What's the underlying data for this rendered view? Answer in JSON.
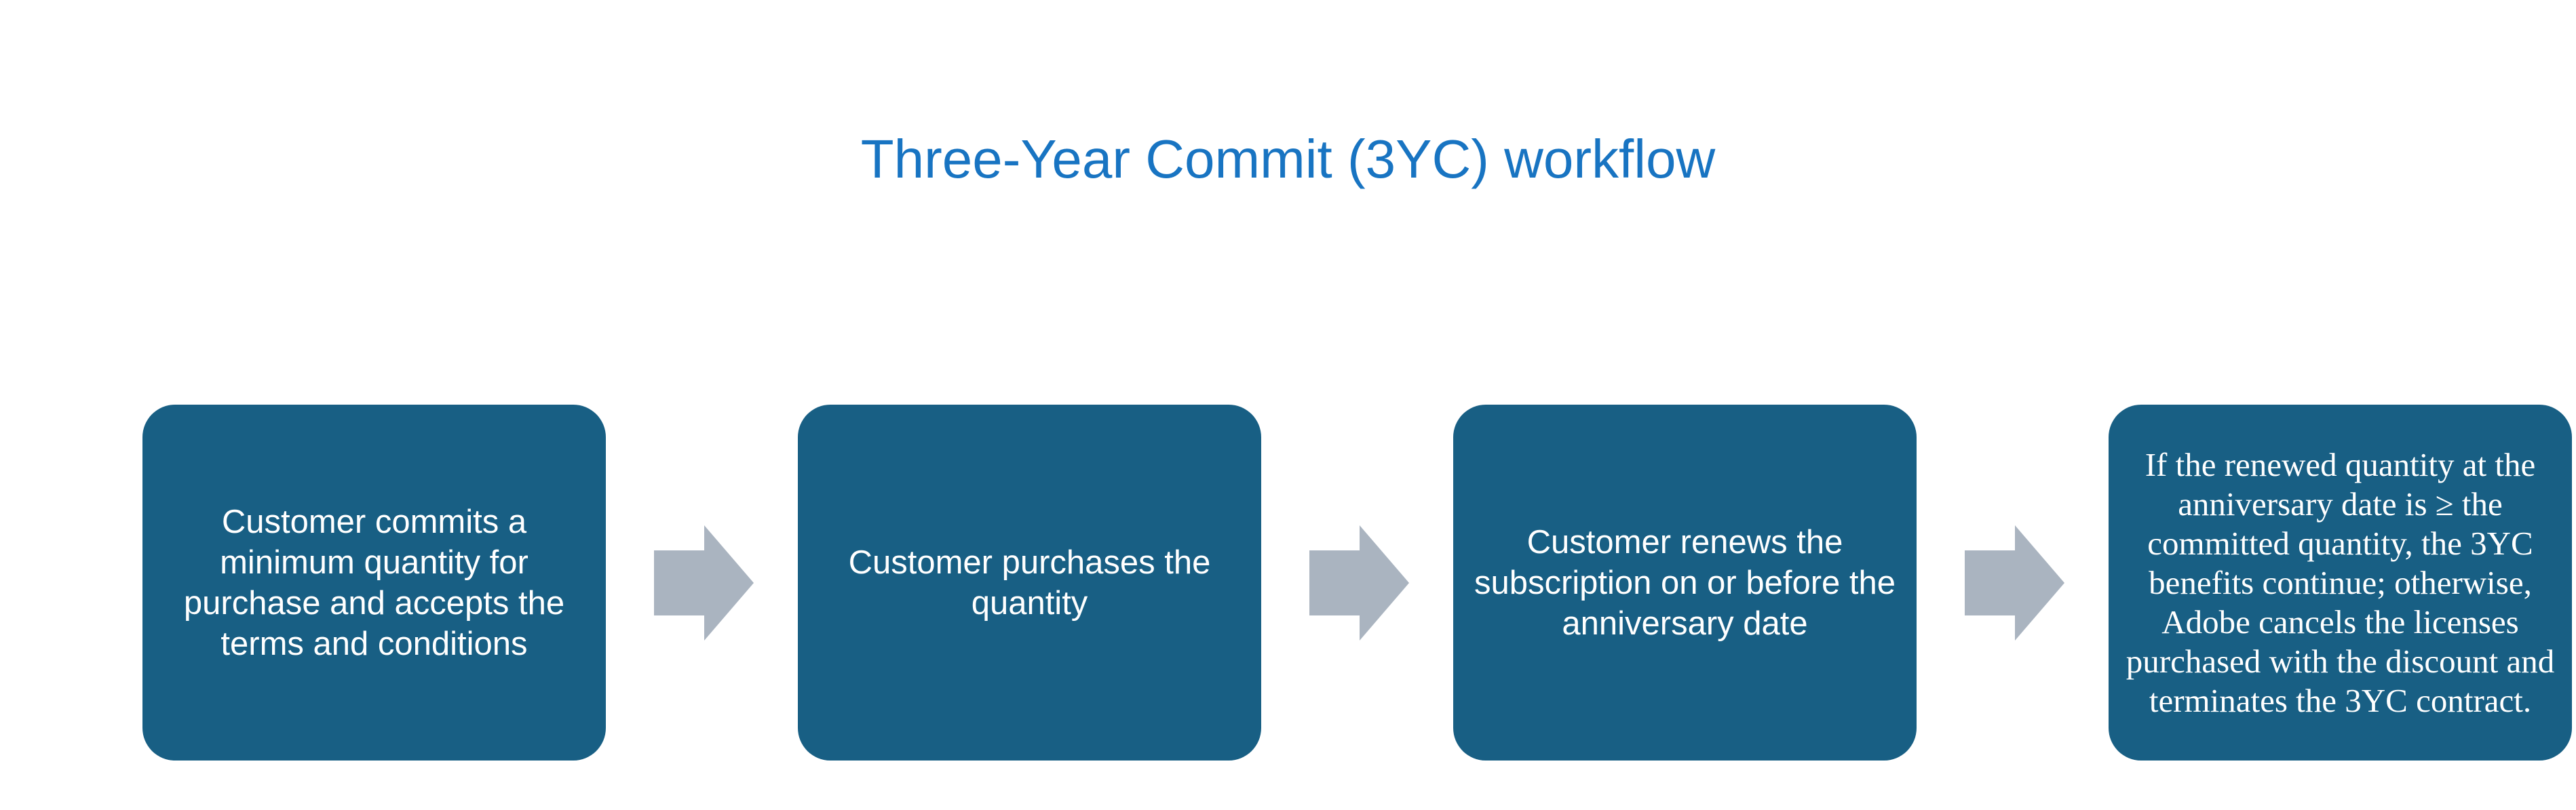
{
  "title": "Three-Year Commit (3YC) workflow",
  "steps": [
    {
      "text": "Customer commits a minimum quantity for purchase and accepts the terms and conditions"
    },
    {
      "text": "Customer purchases the quantity"
    },
    {
      "text": "Customer renews the subscription on or before the anniversary date"
    },
    {
      "text": "If the renewed quantity at the anniversary date is ≥ the committed quantity, the 3YC benefits continue; otherwise, Adobe cancels the licenses purchased with the discount and terminates the 3YC contract."
    }
  ],
  "colors": {
    "title": "#1874c2",
    "box_fill": "#185f84",
    "box_text": "#ffffff",
    "arrow_fill": "#aab4c0"
  },
  "icons": {
    "connector": "right-arrow-icon"
  }
}
